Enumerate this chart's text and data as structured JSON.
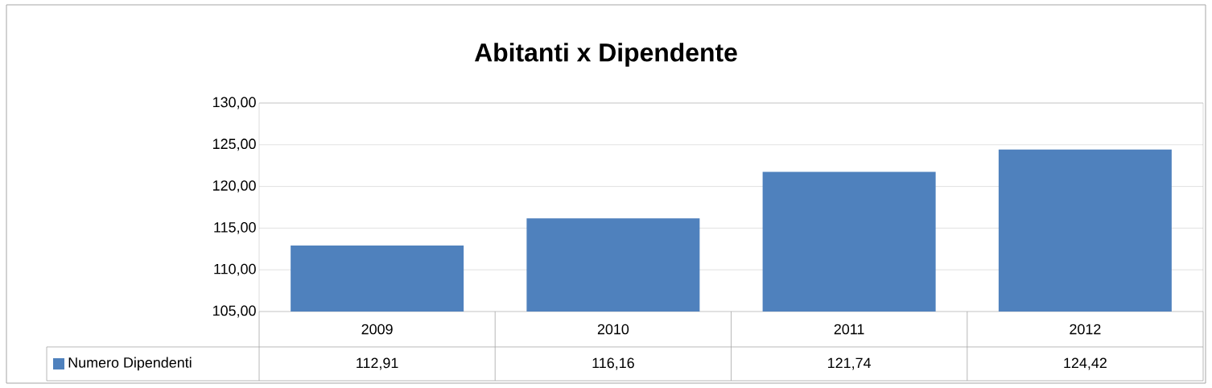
{
  "chart_data": {
    "type": "bar",
    "title": "Abitanti x Dipendente",
    "categories": [
      "2009",
      "2010",
      "2011",
      "2012"
    ],
    "series": [
      {
        "name": "Numero Dipendenti",
        "color": "#4f81bd",
        "values": [
          112.91,
          116.16,
          121.74,
          124.42
        ],
        "value_labels": [
          "112,91",
          "116,16",
          "121,74",
          "124,42"
        ]
      }
    ],
    "ylim": [
      105,
      130
    ],
    "yticks": [
      {
        "value": 105,
        "label": "105,00"
      },
      {
        "value": 110,
        "label": "110,00"
      },
      {
        "value": 115,
        "label": "115,00"
      },
      {
        "value": 120,
        "label": "120,00"
      },
      {
        "value": 125,
        "label": "125,00"
      },
      {
        "value": 130,
        "label": "130,00"
      }
    ],
    "grid": "y",
    "legend": "bottom"
  }
}
